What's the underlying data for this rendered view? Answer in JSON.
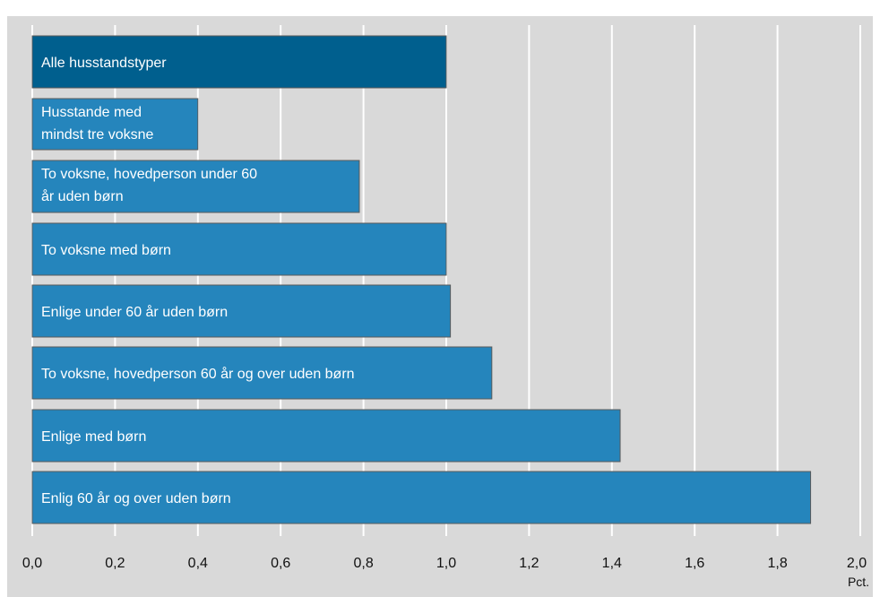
{
  "title": "",
  "chart_data": {
    "type": "bar",
    "orientation": "horizontal",
    "title": "",
    "xlabel": "",
    "ylabel": "",
    "unit_label": "Pct.",
    "xlim": [
      0,
      2.0
    ],
    "ticks": [
      "0,0",
      "0,2",
      "0,4",
      "0,6",
      "0,8",
      "1,0",
      "1,2",
      "1,4",
      "1,6",
      "1,8",
      "2,0"
    ],
    "grid": true,
    "categories": [
      "Alle husstandstyper",
      "Husstande med mindst tre voksne",
      "To voksne, hovedperson under 60 år uden børn",
      "To voksne med børn",
      "Enlige under 60 år uden børn",
      "To voksne, hovedperson 60 år og over uden børn",
      "Enlige med børn",
      "Enlig 60 år og over uden børn"
    ],
    "values": [
      1.0,
      0.4,
      0.79,
      1.0,
      1.01,
      1.11,
      1.42,
      1.88
    ],
    "bar_colors": [
      "#005f8e",
      "#2585bc",
      "#2585bc",
      "#2585bc",
      "#2585bc",
      "#2585bc",
      "#2585bc",
      "#2585bc"
    ]
  }
}
